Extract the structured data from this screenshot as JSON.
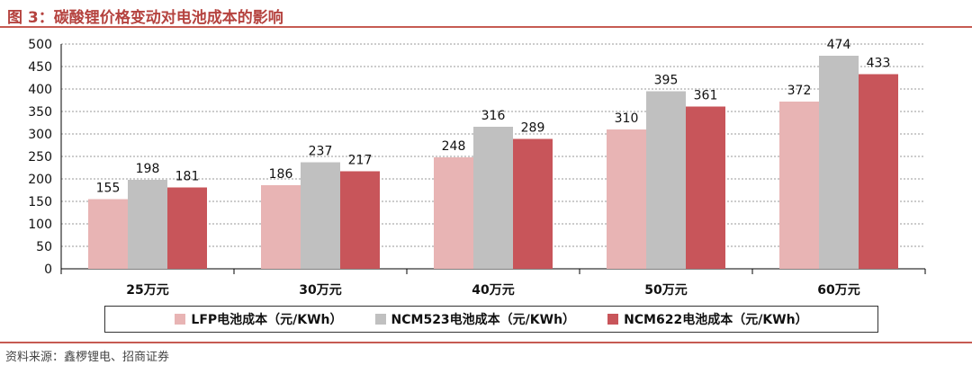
{
  "figure": {
    "title": "图 3：碳酸锂价格变动对电池成本的影响",
    "source": "资料来源：鑫椤锂电、招商证券"
  },
  "colors": {
    "LFP": "#e8b4b4",
    "NCM523": "#c0c0c0",
    "NCM622": "#c8555a",
    "accent": "#c65b52"
  },
  "chart_data": {
    "type": "bar",
    "categories": [
      "25万元",
      "30万元",
      "40万元",
      "50万元",
      "60万元"
    ],
    "series": [
      {
        "name": "LFP电池成本（元/KWh）",
        "values": [
          155,
          186,
          248,
          310,
          372
        ]
      },
      {
        "name": "NCM523电池成本（元/KWh）",
        "values": [
          198,
          237,
          316,
          395,
          474
        ]
      },
      {
        "name": "NCM622电池成本（元/KWh）",
        "values": [
          181,
          217,
          289,
          361,
          433
        ]
      }
    ],
    "yticks": [
      0,
      50,
      100,
      150,
      200,
      250,
      300,
      350,
      400,
      450,
      500
    ],
    "ylim": [
      0,
      500
    ],
    "grid": true,
    "legend_position": "bottom"
  }
}
